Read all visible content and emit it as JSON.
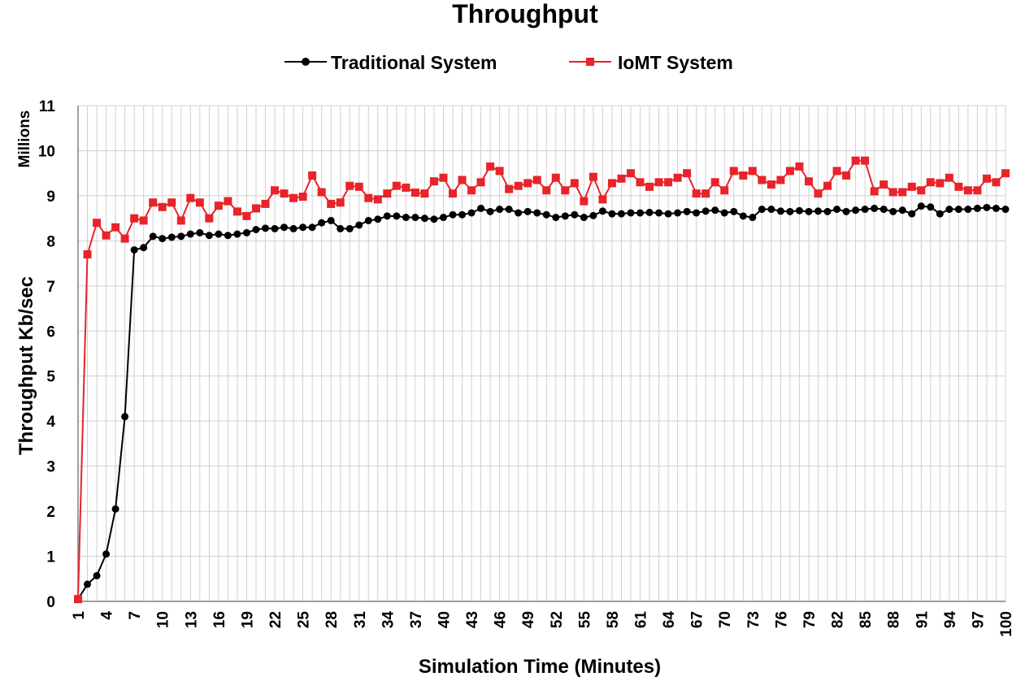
{
  "chart_data": {
    "type": "line",
    "title": "Throughput",
    "xlabel": "Simulation Time (Minutes)",
    "ylabel": "Throughput Kb/sec",
    "y_units": "Millions",
    "xlim": [
      1,
      100
    ],
    "ylim": [
      0,
      11
    ],
    "x_ticks": [
      1,
      4,
      7,
      10,
      13,
      16,
      19,
      22,
      25,
      28,
      31,
      34,
      37,
      40,
      43,
      46,
      49,
      52,
      55,
      58,
      61,
      64,
      67,
      70,
      73,
      76,
      79,
      82,
      85,
      88,
      91,
      94,
      97,
      100
    ],
    "y_ticks": [
      0,
      1,
      2,
      3,
      4,
      5,
      6,
      7,
      8,
      9,
      10,
      11
    ],
    "grid": true,
    "legend_position": "top",
    "x": [
      1,
      2,
      3,
      4,
      5,
      6,
      7,
      8,
      9,
      10,
      11,
      12,
      13,
      14,
      15,
      16,
      17,
      18,
      19,
      20,
      21,
      22,
      23,
      24,
      25,
      26,
      27,
      28,
      29,
      30,
      31,
      32,
      33,
      34,
      35,
      36,
      37,
      38,
      39,
      40,
      41,
      42,
      43,
      44,
      45,
      46,
      47,
      48,
      49,
      50,
      51,
      52,
      53,
      54,
      55,
      56,
      57,
      58,
      59,
      60,
      61,
      62,
      63,
      64,
      65,
      66,
      67,
      68,
      69,
      70,
      71,
      72,
      73,
      74,
      75,
      76,
      77,
      78,
      79,
      80,
      81,
      82,
      83,
      84,
      85,
      86,
      87,
      88,
      89,
      90,
      91,
      92,
      93,
      94,
      95,
      96,
      97,
      98,
      99,
      100
    ],
    "series": [
      {
        "name": "Traditional System",
        "color": "#000000",
        "marker": "circle",
        "values": [
          0.05,
          0.38,
          0.57,
          1.05,
          2.05,
          4.1,
          7.8,
          7.85,
          8.1,
          8.05,
          8.08,
          8.1,
          8.15,
          8.18,
          8.12,
          8.15,
          8.12,
          8.15,
          8.18,
          8.25,
          8.28,
          8.27,
          8.3,
          8.27,
          8.3,
          8.3,
          8.4,
          8.45,
          8.27,
          8.27,
          8.35,
          8.45,
          8.48,
          8.55,
          8.55,
          8.52,
          8.52,
          8.5,
          8.48,
          8.52,
          8.58,
          8.58,
          8.62,
          8.72,
          8.65,
          8.7,
          8.7,
          8.62,
          8.65,
          8.62,
          8.58,
          8.52,
          8.55,
          8.58,
          8.52,
          8.56,
          8.66,
          8.6,
          8.6,
          8.62,
          8.62,
          8.63,
          8.62,
          8.6,
          8.62,
          8.65,
          8.62,
          8.66,
          8.68,
          8.62,
          8.65,
          8.55,
          8.52,
          8.7,
          8.7,
          8.66,
          8.65,
          8.67,
          8.65,
          8.66,
          8.65,
          8.7,
          8.65,
          8.68,
          8.7,
          8.72,
          8.7,
          8.65,
          8.68,
          8.6,
          8.77,
          8.75,
          8.6,
          8.7,
          8.7,
          8.7,
          8.72,
          8.74,
          8.72,
          8.7
        ]
      },
      {
        "name": "IoMT System",
        "color": "#e8232a",
        "marker": "square",
        "values": [
          0.05,
          7.7,
          8.4,
          8.12,
          8.3,
          8.05,
          8.5,
          8.45,
          8.85,
          8.75,
          8.85,
          8.45,
          8.95,
          8.85,
          8.5,
          8.78,
          8.88,
          8.65,
          8.55,
          8.72,
          8.82,
          9.12,
          9.05,
          8.95,
          8.98,
          9.45,
          9.08,
          8.82,
          8.85,
          9.22,
          9.2,
          8.95,
          8.92,
          9.05,
          9.22,
          9.18,
          9.07,
          9.05,
          9.32,
          9.4,
          9.05,
          9.35,
          9.12,
          9.3,
          9.65,
          9.55,
          9.15,
          9.22,
          9.28,
          9.35,
          9.12,
          9.4,
          9.12,
          9.28,
          8.88,
          9.42,
          8.92,
          9.28,
          9.38,
          9.5,
          9.3,
          9.2,
          9.3,
          9.3,
          9.4,
          9.5,
          9.05,
          9.05,
          9.3,
          9.12,
          9.55,
          9.45,
          9.55,
          9.35,
          9.25,
          9.35,
          9.55,
          9.65,
          9.32,
          9.05,
          9.22,
          9.55,
          9.45,
          9.78,
          9.78,
          9.1,
          9.25,
          9.08,
          9.08,
          9.2,
          9.12,
          9.3,
          9.28,
          9.4,
          9.2,
          9.12,
          9.12,
          9.38,
          9.3,
          9.5
        ]
      }
    ]
  }
}
